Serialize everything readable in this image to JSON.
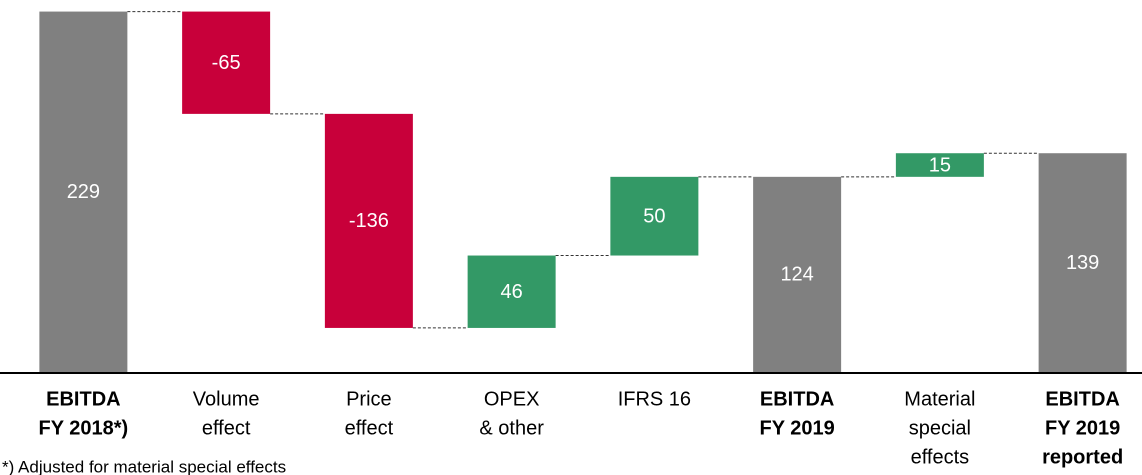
{
  "chart_data": {
    "type": "waterfall",
    "categories": [
      [
        "EBITDA",
        "FY 2018*)"
      ],
      [
        "Volume",
        "effect"
      ],
      [
        "Price",
        "effect"
      ],
      [
        "OPEX",
        "& other"
      ],
      [
        "IFRS 16"
      ],
      [
        "EBITDA",
        "FY 2019"
      ],
      [
        "Material",
        "special",
        "effects"
      ],
      [
        "EBITDA",
        "FY 2019",
        "reported"
      ]
    ],
    "values": [
      229,
      -65,
      -136,
      46,
      50,
      124,
      15,
      139
    ],
    "kinds": [
      "total",
      "delta",
      "delta",
      "delta",
      "delta",
      "total",
      "delta",
      "total"
    ],
    "colors": {
      "total": "#808080",
      "negative": "#c8003a",
      "positive": "#339966"
    },
    "ylim": [
      0,
      230
    ],
    "footnote": "*) Adjusted for material special effects"
  }
}
